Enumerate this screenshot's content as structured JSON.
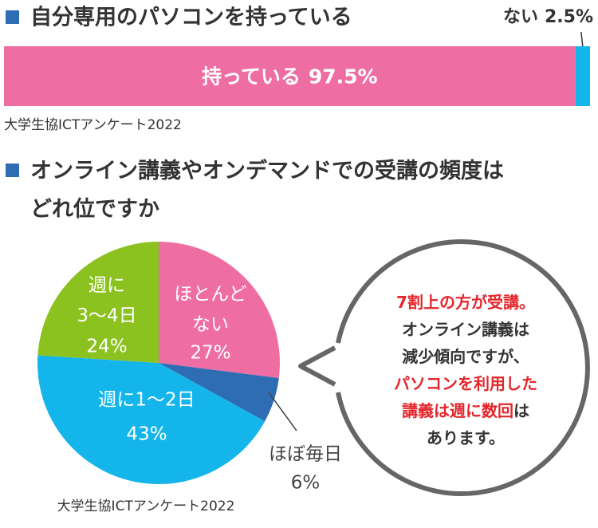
{
  "chart_data": [
    {
      "type": "bar",
      "orientation": "horizontal",
      "stacked": true,
      "title": "自分専用のパソコンを持っている",
      "xlim": [
        0,
        100
      ],
      "series": [
        {
          "name": "持っている",
          "color": "#ee6ea4",
          "values": [
            97.5
          ],
          "value_labels": [
            "97.5%"
          ]
        },
        {
          "name": "ない",
          "color": "#13b5ea",
          "values": [
            2.5
          ],
          "value_labels": [
            "2.5%"
          ]
        }
      ],
      "source": "大学生協ICTアンケート2022"
    },
    {
      "type": "pie",
      "title": "オンライン講義やオンデマンドでの受講の頻度はどれ位ですか",
      "categories": [
        "ほとんど\nない",
        "ほぼ毎日",
        "週に1〜2日",
        "週に\n3〜4日"
      ],
      "values": [
        27,
        6,
        43,
        24
      ],
      "value_labels": [
        "27%",
        "6%",
        "43%",
        "24%"
      ],
      "colors": [
        "#ee6ea4",
        "#2e6db4",
        "#13b5ea",
        "#8cc220"
      ],
      "source": "大学生協ICTアンケート2022",
      "callout": {
        "lines": [
          [
            {
              "text": "7割上の方が受講。",
              "color": "#e5262b"
            }
          ],
          [
            {
              "text": "オンライン講義は",
              "color": "#333333"
            }
          ],
          [
            {
              "text": "減少傾向ですが、",
              "color": "#333333"
            }
          ],
          [
            {
              "text": "パソコンを利用した",
              "color": "#e5262b"
            }
          ],
          [
            {
              "text": "講義は週に数回",
              "color": "#e5262b"
            },
            {
              "text": "は",
              "color": "#333333"
            }
          ],
          [
            {
              "text": "あります。",
              "color": "#333333"
            }
          ]
        ]
      }
    }
  ]
}
